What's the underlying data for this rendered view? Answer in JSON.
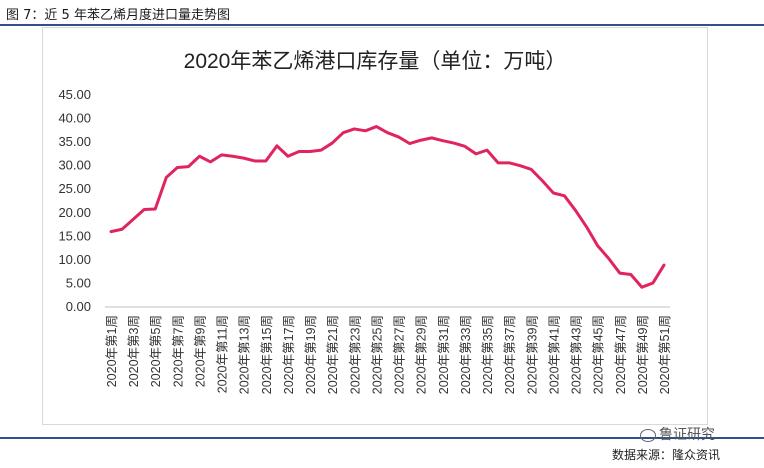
{
  "figure_caption": "图 7：近 5 年苯乙烯月度进口量走势图",
  "watermark_text": "鲁证研究",
  "source_text": "数据来源：隆众资讯",
  "colors": {
    "line": "#e0245e",
    "rule": "#2f4f8f",
    "axis_text": "#333333"
  },
  "chart_data": {
    "type": "line",
    "title": "2020年苯乙烯港口库存量（单位：万吨）",
    "xlabel": "",
    "ylabel": "",
    "ylim": [
      0,
      45
    ],
    "yticks": [
      "0.00",
      "5.00",
      "10.00",
      "15.00",
      "20.00",
      "25.00",
      "30.00",
      "35.00",
      "40.00",
      "45.00"
    ],
    "grid": false,
    "legend": "none",
    "x_tick_labels": [
      "2020年第1周",
      "2020年第3周",
      "2020年第5周",
      "2020年第7周",
      "2020年第9周",
      "2020年第11周",
      "2020年第13周",
      "2020年第15周",
      "2020年第17周",
      "2020年第19周",
      "2020年第21周",
      "2020年第23周",
      "2020年第25周",
      "2020年第27周",
      "2020年第29周",
      "2020年第31周",
      "2020年第33周",
      "2020年第35周",
      "2020年第37周",
      "2020年第39周",
      "2020年第41周",
      "2020年第43周",
      "2020年第45周",
      "2020年第47周",
      "2020年第49周",
      "2020年第51周"
    ],
    "series": [
      {
        "values": [
          16.0,
          16.5,
          18.6,
          20.7,
          20.8,
          27.5,
          29.6,
          29.8,
          32.0,
          30.8,
          32.3,
          32.0,
          31.6,
          31.0,
          31.0,
          34.2,
          32.0,
          33.0,
          33.0,
          33.3,
          34.8,
          37.0,
          37.8,
          37.4,
          38.3,
          37.0,
          36.1,
          34.7,
          35.4,
          35.9,
          35.3,
          34.8,
          34.1,
          32.5,
          33.3,
          30.6,
          30.6,
          30.0,
          29.2,
          26.8,
          24.2,
          23.6,
          20.5,
          17.0,
          13.0,
          10.3,
          7.2,
          6.9,
          4.2,
          5.1,
          8.9
        ]
      }
    ]
  }
}
